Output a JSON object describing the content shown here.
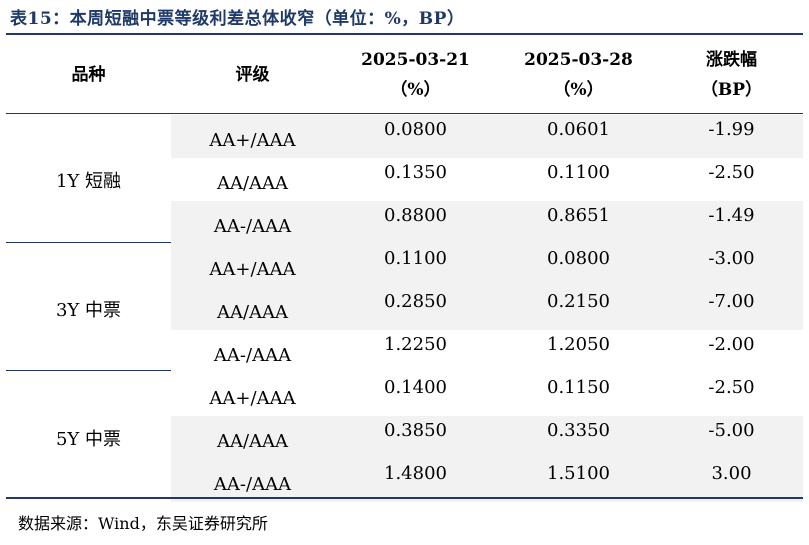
{
  "title": "表15：本周短融中票等级利差总体收窄（单位：%，BP）",
  "table": {
    "headers": {
      "col1": "品种",
      "col2": "评级",
      "col3_line1": "2025-03-21",
      "col3_line2": "（%）",
      "col4_line1": "2025-03-28",
      "col4_line2": "（%）",
      "col5_line1": "涨跌幅",
      "col5_line2": "（BP）"
    },
    "groups": [
      {
        "name": "1Y 短融",
        "rows": [
          {
            "grade": "AA+/AAA",
            "v1": "0.0800",
            "v2": "0.0601",
            "chg": "-1.99"
          },
          {
            "grade": "AA/AAA",
            "v1": "0.1350",
            "v2": "0.1100",
            "chg": "-2.50"
          },
          {
            "grade": "AA-/AAA",
            "v1": "0.8800",
            "v2": "0.8651",
            "chg": "-1.49"
          }
        ]
      },
      {
        "name": "3Y 中票",
        "rows": [
          {
            "grade": "AA+/AAA",
            "v1": "0.1100",
            "v2": "0.0800",
            "chg": "-3.00"
          },
          {
            "grade": "AA/AAA",
            "v1": "0.2850",
            "v2": "0.2150",
            "chg": "-7.00"
          },
          {
            "grade": "AA-/AAA",
            "v1": "1.2250",
            "v2": "1.2050",
            "chg": "-2.00"
          }
        ]
      },
      {
        "name": "5Y 中票",
        "rows": [
          {
            "grade": "AA+/AAA",
            "v1": "0.1400",
            "v2": "0.1150",
            "chg": "-2.50"
          },
          {
            "grade": "AA/AAA",
            "v1": "0.3850",
            "v2": "0.3350",
            "chg": "-5.00"
          },
          {
            "grade": "AA-/AAA",
            "v1": "1.4800",
            "v2": "1.5100",
            "chg": "3.00"
          }
        ]
      }
    ]
  },
  "footer": "数据来源：Wind，东吴证券研究所",
  "colors": {
    "accent": "#1f3a68",
    "row_shade": "#f2f2f2"
  }
}
